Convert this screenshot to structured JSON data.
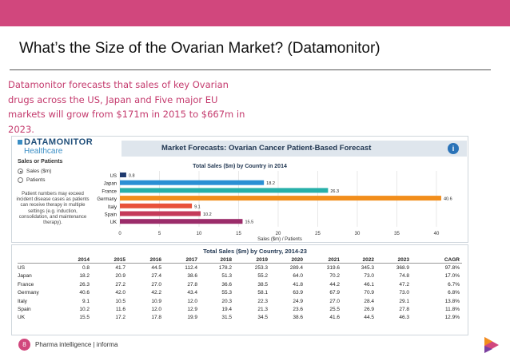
{
  "slide": {
    "title": "What’s the Size of the Ovarian Market? (Datamonitor)",
    "summary": "Datamonitor forecasts that sales of key Ovarian drugs across the US, Japan and Five major EU markets will grow from $171m in 2015 to $667m in 2023.",
    "page_number": "8",
    "footer": "Pharma intelligence | informa"
  },
  "brand": {
    "topbar_color": "#d1477d",
    "accent_color": "#c43a6d",
    "logo_line1": "DATAMONITOR",
    "logo_line2": "Healthcare"
  },
  "forecast": {
    "header": "Market Forecasts: Ovarian Cancer Patient-Based Forecast",
    "info_icon": "i",
    "sales_or_patients_label": "Sales or Patients",
    "options": [
      "Sales ($m)",
      "Patients"
    ],
    "selected_option": "Sales ($m)",
    "note": "Patient numbers may exceed incident disease cases as patients can receive therapy in multiple settings (e.g. induction, consolidation, and maintenance therapy)."
  },
  "chart_data": {
    "type": "bar",
    "orientation": "horizontal",
    "title": "Total Sales ($m) by Country in 2014",
    "categories": [
      "US",
      "Japan",
      "France",
      "Germany",
      "Italy",
      "Spain",
      "UK"
    ],
    "values": [
      0.8,
      18.2,
      26.3,
      40.6,
      9.1,
      10.2,
      15.5
    ],
    "colors": [
      "#1f3a6e",
      "#2a8fd4",
      "#27b0a9",
      "#f28e1c",
      "#e8513a",
      "#c43a5a",
      "#9b2c6a"
    ],
    "xlabel": "Sales ($m) / Patients",
    "xlim": [
      0,
      40
    ],
    "xticks": [
      0,
      5,
      10,
      15,
      20,
      25,
      30,
      35,
      40
    ],
    "grid": true
  },
  "table": {
    "title": "Total Sales ($m) by Country, 2014-23",
    "columns": [
      "",
      "2014",
      "2015",
      "2016",
      "2017",
      "2018",
      "2019",
      "2020",
      "2021",
      "2022",
      "2023",
      "CAGR"
    ],
    "rows": [
      [
        "US",
        "0.8",
        "41.7",
        "44.5",
        "112.4",
        "178.2",
        "253.3",
        "289.4",
        "319.6",
        "345.3",
        "368.9",
        "97.8%"
      ],
      [
        "Japan",
        "18.2",
        "20.9",
        "27.4",
        "38.6",
        "51.3",
        "55.2",
        "64.0",
        "70.2",
        "73.0",
        "74.8",
        "17.0%"
      ],
      [
        "France",
        "26.3",
        "27.2",
        "27.0",
        "27.8",
        "36.6",
        "38.5",
        "41.8",
        "44.2",
        "46.1",
        "47.2",
        "6.7%"
      ],
      [
        "Germany",
        "40.6",
        "42.0",
        "42.2",
        "43.4",
        "55.3",
        "58.1",
        "63.9",
        "67.9",
        "70.9",
        "73.0",
        "6.8%"
      ],
      [
        "Italy",
        "9.1",
        "10.5",
        "10.9",
        "12.0",
        "20.3",
        "22.3",
        "24.9",
        "27.0",
        "28.4",
        "29.1",
        "13.8%"
      ],
      [
        "Spain",
        "10.2",
        "11.6",
        "12.0",
        "12.9",
        "19.4",
        "21.3",
        "23.6",
        "25.5",
        "26.9",
        "27.8",
        "11.8%"
      ],
      [
        "UK",
        "15.5",
        "17.2",
        "17.8",
        "19.9",
        "31.5",
        "34.5",
        "38.6",
        "41.6",
        "44.5",
        "46.3",
        "12.9%"
      ]
    ]
  }
}
